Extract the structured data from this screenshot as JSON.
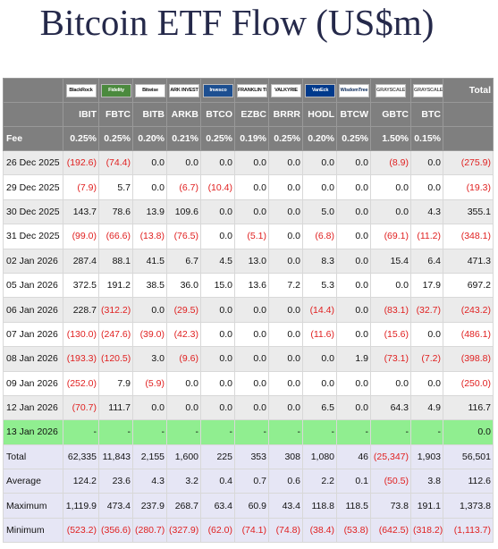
{
  "title": "Bitcoin ETF Flow (US$m)",
  "header": {
    "logos": [
      {
        "name": "BlackRock",
        "icon": "blackrock-logo"
      },
      {
        "name": "Fidelity",
        "icon": "fidelity-logo"
      },
      {
        "name": "Bitwise",
        "icon": "bitwise-logo"
      },
      {
        "name": "ARK INVEST",
        "icon": "ark-logo"
      },
      {
        "name": "Invesco",
        "icon": "invesco-logo"
      },
      {
        "name": "FRANKLIN TEMPLETON",
        "icon": "franklin-logo"
      },
      {
        "name": "VALKYRIE",
        "icon": "valkyrie-logo"
      },
      {
        "name": "VanEck",
        "icon": "vaneck-logo"
      },
      {
        "name": "WisdomTree",
        "icon": "wisdomtree-logo"
      },
      {
        "name": "GRAYSCALE",
        "icon": "grayscale-logo"
      },
      {
        "name": "GRAYSCALE",
        "icon": "grayscale-logo"
      }
    ],
    "total_label": "Total",
    "tickers": [
      "IBIT",
      "FBTC",
      "BITB",
      "ARKB",
      "BTCO",
      "EZBC",
      "BRRR",
      "HODL",
      "BTCW",
      "GBTC",
      "BTC"
    ],
    "fee_label": "Fee",
    "fees": [
      "0.25%",
      "0.25%",
      "0.20%",
      "0.21%",
      "0.25%",
      "0.19%",
      "0.25%",
      "0.20%",
      "0.25%",
      "1.50%",
      "0.15%"
    ]
  },
  "rows": [
    {
      "date": "26 Dec 2025",
      "values": [
        "(192.6)",
        "(74.4)",
        "0.0",
        "0.0",
        "0.0",
        "0.0",
        "0.0",
        "0.0",
        "0.0",
        "(8.9)",
        "0.0"
      ],
      "total": "(275.9)"
    },
    {
      "date": "29 Dec 2025",
      "values": [
        "(7.9)",
        "5.7",
        "0.0",
        "(6.7)",
        "(10.4)",
        "0.0",
        "0.0",
        "0.0",
        "0.0",
        "0.0",
        "0.0"
      ],
      "total": "(19.3)"
    },
    {
      "date": "30 Dec 2025",
      "values": [
        "143.7",
        "78.6",
        "13.9",
        "109.6",
        "0.0",
        "0.0",
        "0.0",
        "5.0",
        "0.0",
        "0.0",
        "4.3"
      ],
      "total": "355.1"
    },
    {
      "date": "31 Dec 2025",
      "values": [
        "(99.0)",
        "(66.6)",
        "(13.8)",
        "(76.5)",
        "0.0",
        "(5.1)",
        "0.0",
        "(6.8)",
        "0.0",
        "(69.1)",
        "(11.2)"
      ],
      "total": "(348.1)"
    },
    {
      "date": "02 Jan 2026",
      "values": [
        "287.4",
        "88.1",
        "41.5",
        "6.7",
        "4.5",
        "13.0",
        "0.0",
        "8.3",
        "0.0",
        "15.4",
        "6.4"
      ],
      "total": "471.3"
    },
    {
      "date": "05 Jan 2026",
      "values": [
        "372.5",
        "191.2",
        "38.5",
        "36.0",
        "15.0",
        "13.6",
        "7.2",
        "5.3",
        "0.0",
        "0.0",
        "17.9"
      ],
      "total": "697.2"
    },
    {
      "date": "06 Jan 2026",
      "values": [
        "228.7",
        "(312.2)",
        "0.0",
        "(29.5)",
        "0.0",
        "0.0",
        "0.0",
        "(14.4)",
        "0.0",
        "(83.1)",
        "(32.7)"
      ],
      "total": "(243.2)"
    },
    {
      "date": "07 Jan 2026",
      "values": [
        "(130.0)",
        "(247.6)",
        "(39.0)",
        "(42.3)",
        "0.0",
        "0.0",
        "0.0",
        "(11.6)",
        "0.0",
        "(15.6)",
        "0.0"
      ],
      "total": "(486.1)"
    },
    {
      "date": "08 Jan 2026",
      "values": [
        "(193.3)",
        "(120.5)",
        "3.0",
        "(9.6)",
        "0.0",
        "0.0",
        "0.0",
        "0.0",
        "1.9",
        "(73.1)",
        "(7.2)"
      ],
      "total": "(398.8)"
    },
    {
      "date": "09 Jan 2026",
      "values": [
        "(252.0)",
        "7.9",
        "(5.9)",
        "0.0",
        "0.0",
        "0.0",
        "0.0",
        "0.0",
        "0.0",
        "0.0",
        "0.0"
      ],
      "total": "(250.0)"
    },
    {
      "date": "12 Jan 2026",
      "values": [
        "(70.7)",
        "111.7",
        "0.0",
        "0.0",
        "0.0",
        "0.0",
        "0.0",
        "6.5",
        "0.0",
        "64.3",
        "4.9"
      ],
      "total": "116.7"
    },
    {
      "date": "13 Jan 2026",
      "values": [
        "-",
        "-",
        "-",
        "-",
        "-",
        "-",
        "-",
        "-",
        "-",
        "-",
        "-"
      ],
      "total": "0.0",
      "highlight": "#90ee90"
    }
  ],
  "stats": [
    {
      "label": "Total",
      "values": [
        "62,335",
        "11,843",
        "2,155",
        "1,600",
        "225",
        "353",
        "308",
        "1,080",
        "46",
        "(25,347)",
        "1,903"
      ],
      "total": "56,501"
    },
    {
      "label": "Average",
      "values": [
        "124.2",
        "23.6",
        "4.3",
        "3.2",
        "0.4",
        "0.7",
        "0.6",
        "2.2",
        "0.1",
        "(50.5)",
        "3.8"
      ],
      "total": "112.6"
    },
    {
      "label": "Maximum",
      "values": [
        "1,119.9",
        "473.4",
        "237.9",
        "268.7",
        "63.4",
        "60.9",
        "43.4",
        "118.8",
        "118.5",
        "73.8",
        "191.1"
      ],
      "total": "1,373.8"
    },
    {
      "label": "Minimum",
      "values": [
        "(523.2)",
        "(356.6)",
        "(280.7)",
        "(327.9)",
        "(62.0)",
        "(74.1)",
        "(74.8)",
        "(38.4)",
        "(53.8)",
        "(642.5)",
        "(318.2)"
      ],
      "total": "(1,113.7)"
    }
  ],
  "colors": {
    "negative": "#e02020",
    "header_bg": "#7f7f7f",
    "stats_bg": "#e6e6f5",
    "title": "#25294a"
  }
}
